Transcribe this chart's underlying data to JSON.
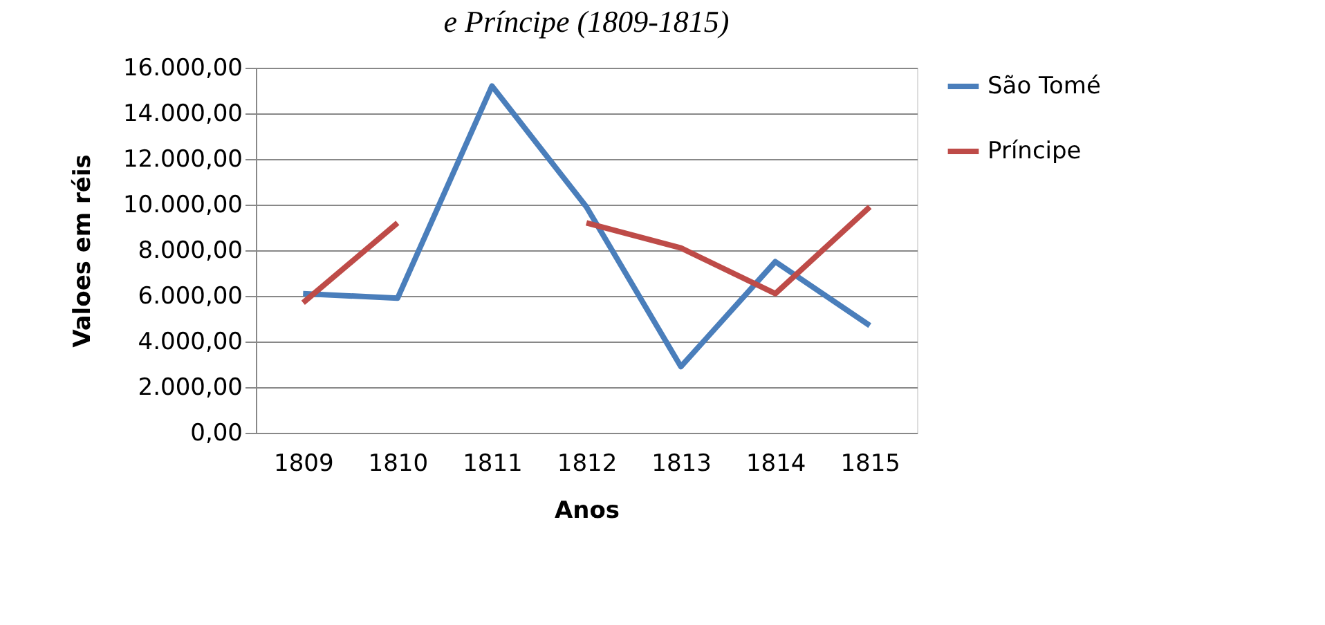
{
  "chart_data": {
    "type": "line",
    "title": "e Príncipe (1809-1815)",
    "xlabel": "Anos",
    "ylabel": "Valoes em réis",
    "categories": [
      "1809",
      "1810",
      "1811",
      "1812",
      "1813",
      "1814",
      "1815"
    ],
    "series": [
      {
        "name": "São Tomé",
        "color": "#4a7ebb",
        "values": [
          6100,
          5900,
          15200,
          9900,
          2900,
          7500,
          4700
        ]
      },
      {
        "name": "Príncipe",
        "color": "#be4b48",
        "values": [
          5700,
          9200,
          null,
          9200,
          8100,
          6100,
          9900
        ]
      }
    ],
    "ylim": [
      0,
      16000
    ],
    "yticks": [
      {
        "value": 0,
        "label": "0,00"
      },
      {
        "value": 2000,
        "label": "2.000,00"
      },
      {
        "value": 4000,
        "label": "4.000,00"
      },
      {
        "value": 6000,
        "label": "6.000,00"
      },
      {
        "value": 8000,
        "label": "8.000,00"
      },
      {
        "value": 10000,
        "label": "10.000,00"
      },
      {
        "value": 12000,
        "label": "12.000,00"
      },
      {
        "value": 14000,
        "label": "14.000,00"
      },
      {
        "value": 16000,
        "label": "16.000,00"
      }
    ],
    "grid": "y",
    "legend": "right",
    "marker": "none",
    "line_style": "solid"
  }
}
